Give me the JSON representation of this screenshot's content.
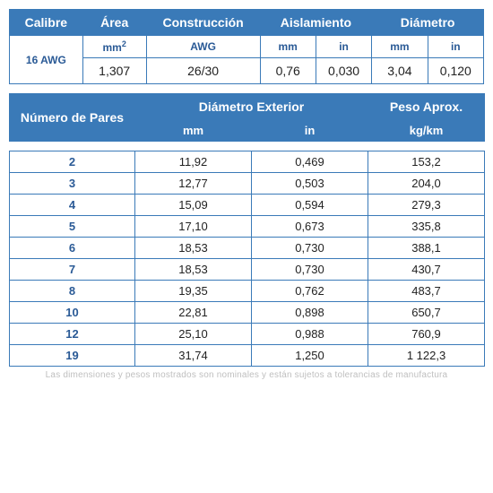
{
  "colors": {
    "header_bg": "#3a7ab8",
    "header_fg": "#ffffff",
    "border": "#3a7ab8",
    "unit_fg": "#2a5a96",
    "cell_fg": "#222222",
    "footnote_fg": "#bfbfbf",
    "background": "#ffffff"
  },
  "spec_table": {
    "headers": {
      "calibre": "Calibre",
      "area": "Área",
      "construccion": "Construcción",
      "aislamiento": "Aislamiento",
      "diametro": "Diámetro"
    },
    "units": {
      "area": "mm²",
      "construccion": "AWG",
      "aisl_mm": "mm",
      "aisl_in": "in",
      "diam_mm": "mm",
      "diam_in": "in"
    },
    "row": {
      "calibre": "16 AWG",
      "area": "1,307",
      "construccion": "26/30",
      "aisl_mm": "0,76",
      "aisl_in": "0,030",
      "diam_mm": "3,04",
      "diam_in": "0,120"
    }
  },
  "pairs_table": {
    "headers": {
      "pares": "Número de Pares",
      "diam_ext": "Diámetro Exterior",
      "diam_mm": "mm",
      "diam_in": "in",
      "peso": "Peso Aprox.",
      "peso_unit": "kg/km"
    },
    "rows": [
      {
        "pares": "2",
        "mm": "11,92",
        "in": "0,469",
        "peso": "153,2"
      },
      {
        "pares": "3",
        "mm": "12,77",
        "in": "0,503",
        "peso": "204,0"
      },
      {
        "pares": "4",
        "mm": "15,09",
        "in": "0,594",
        "peso": "279,3"
      },
      {
        "pares": "5",
        "mm": "17,10",
        "in": "0,673",
        "peso": "335,8"
      },
      {
        "pares": "6",
        "mm": "18,53",
        "in": "0,730",
        "peso": "388,1"
      },
      {
        "pares": "7",
        "mm": "18,53",
        "in": "0,730",
        "peso": "430,7"
      },
      {
        "pares": "8",
        "mm": "19,35",
        "in": "0,762",
        "peso": "483,7"
      },
      {
        "pares": "10",
        "mm": "22,81",
        "in": "0,898",
        "peso": "650,7"
      },
      {
        "pares": "12",
        "mm": "25,10",
        "in": "0,988",
        "peso": "760,9"
      },
      {
        "pares": "19",
        "mm": "31,74",
        "in": "1,250",
        "peso": "1 122,3"
      }
    ]
  },
  "footnote": "Las dimensiones y pesos mostrados son nominales y están sujetos a tolerancias de manufactura",
  "layout": {
    "spec_col_widths": [
      "76px",
      "66px",
      "118px",
      "58px",
      "58px",
      "58px",
      "58px"
    ],
    "pairs_col_widths": [
      "140px",
      "130px",
      "130px",
      "130px"
    ]
  }
}
